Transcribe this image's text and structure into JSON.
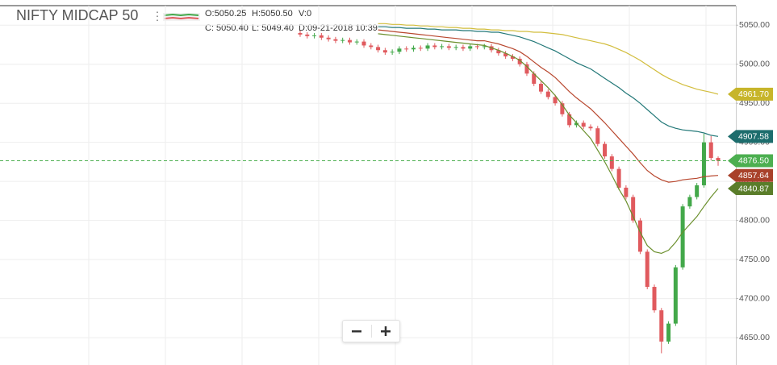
{
  "chart_data": {
    "type": "candlestick",
    "title": "NIFTY MIDCAP 50",
    "ohlc_texts": [
      "O:5050.25",
      "H:5050.50",
      "V:0",
      "C: 5050.40",
      "L: 5049.40",
      "D:09-21-2018 10:39"
    ],
    "up_color": "#43a84a",
    "down_color": "#e05a5e",
    "ylim": [
      4615,
      5075
    ],
    "yticks": [
      {
        "value": 5050,
        "label": "5050.00"
      },
      {
        "value": 5000,
        "label": "5000.00"
      },
      {
        "value": 4950,
        "label": "4950.00"
      },
      {
        "value": 4900,
        "label": "4900.00"
      },
      {
        "value": 4850,
        "label": "4850.00"
      },
      {
        "value": 4800,
        "label": "4800.00"
      },
      {
        "value": 4750,
        "label": "4750.00"
      },
      {
        "value": 4700,
        "label": "4700.00"
      },
      {
        "value": 4650,
        "label": "4650.00"
      }
    ],
    "grid": true,
    "open": [
      5040,
      5038,
      5036,
      5037,
      5034,
      5032,
      5030,
      5031,
      5028,
      5029,
      5024,
      5022,
      5018,
      5015,
      5016,
      5020,
      5019,
      5021,
      5020,
      5024,
      5022,
      5023,
      5021,
      5022,
      5020,
      5023,
      5022,
      5023,
      5018,
      5014,
      5010,
      5007,
      5000,
      4988,
      4975,
      4965,
      4958,
      4950,
      4936,
      4922,
      4925,
      4920,
      4918,
      4898,
      4882,
      4866,
      4842,
      4830,
      4800,
      4760,
      4715,
      4685,
      4645,
      4668,
      4740,
      4818,
      4830,
      4845,
      4900,
      4880
    ],
    "high": [
      5043,
      5041,
      5040,
      5040,
      5037,
      5035,
      5034,
      5034,
      5032,
      5032,
      5027,
      5025,
      5021,
      5019,
      5023,
      5023,
      5024,
      5024,
      5027,
      5027,
      5026,
      5026,
      5025,
      5025,
      5026,
      5026,
      5026,
      5026,
      5021,
      5017,
      5013,
      5010,
      5003,
      4991,
      4978,
      4968,
      4961,
      4953,
      4939,
      4928,
      4928,
      4923,
      4921,
      4901,
      4885,
      4869,
      4845,
      4833,
      4803,
      4763,
      4718,
      4688,
      4671,
      4743,
      4821,
      4833,
      4848,
      4911,
      4908,
      4882
    ],
    "low": [
      5035,
      5033,
      5033,
      5031,
      5029,
      5027,
      5027,
      5025,
      5025,
      5021,
      5019,
      5015,
      5012,
      5012,
      5013,
      5016,
      5016,
      5017,
      5017,
      5019,
      5019,
      5018,
      5018,
      5017,
      5017,
      5019,
      5019,
      5015,
      5011,
      5007,
      5004,
      4997,
      4985,
      4972,
      4962,
      4955,
      4947,
      4933,
      4919,
      4919,
      4917,
      4915,
      4895,
      4879,
      4863,
      4839,
      4827,
      4797,
      4757,
      4712,
      4682,
      4630,
      4642,
      4665,
      4737,
      4815,
      4827,
      4842,
      4877,
      4870
    ],
    "close": [
      5038,
      5036,
      5037,
      5034,
      5032,
      5030,
      5031,
      5028,
      5029,
      5024,
      5022,
      5018,
      5015,
      5016,
      5020,
      5019,
      5021,
      5020,
      5024,
      5022,
      5023,
      5021,
      5022,
      5020,
      5023,
      5022,
      5023,
      5018,
      5014,
      5010,
      5007,
      5000,
      4988,
      4975,
      4965,
      4958,
      4950,
      4936,
      4922,
      4925,
      4920,
      4918,
      4898,
      4882,
      4866,
      4842,
      4830,
      4800,
      4760,
      4715,
      4685,
      4645,
      4668,
      4740,
      4818,
      4830,
      4845,
      4900,
      4880,
      4876.5
    ],
    "series": [
      {
        "color": "#d2bd3c",
        "values": [
          null,
          null,
          null,
          null,
          null,
          null,
          null,
          null,
          null,
          null,
          null,
          5052,
          5052,
          5051,
          5051,
          5050,
          5050,
          5049,
          5049,
          5048,
          5048,
          5047,
          5047,
          5046,
          5046,
          5045,
          5045,
          5044,
          5044,
          5043,
          5043,
          5042,
          5042,
          5041,
          5041,
          5040,
          5039,
          5038,
          5036,
          5034,
          5032,
          5030,
          5028,
          5026,
          5023,
          5019,
          5015,
          5010,
          5005,
          4999,
          4993,
          4987,
          4982,
          4978,
          4974,
          4971,
          4968,
          4966,
          4964,
          4961.7
        ]
      },
      {
        "color": "#237878",
        "values": [
          null,
          null,
          null,
          null,
          null,
          null,
          null,
          null,
          null,
          null,
          null,
          5048,
          5048,
          5047,
          5047,
          5046,
          5046,
          5046,
          5045,
          5045,
          5044,
          5044,
          5044,
          5043,
          5043,
          5042,
          5042,
          5041,
          5041,
          5039,
          5037,
          5035,
          5032,
          5029,
          5025,
          5021,
          5017,
          5012,
          5007,
          5002,
          4998,
          4994,
          4988,
          4982,
          4976,
          4970,
          4963,
          4957,
          4950,
          4942,
          4934,
          4926,
          4921,
          4918,
          4916,
          4915,
          4914,
          4912,
          4909,
          4907.58
        ]
      },
      {
        "color": "#b8472e",
        "values": [
          null,
          null,
          null,
          null,
          null,
          null,
          null,
          null,
          null,
          null,
          null,
          5044,
          5043,
          5042,
          5041,
          5040,
          5039,
          5038,
          5037,
          5036,
          5035,
          5034,
          5033,
          5032,
          5031,
          5030,
          5030,
          5028,
          5026,
          5023,
          5020,
          5016,
          5010,
          5003,
          4996,
          4990,
          4983,
          4974,
          4965,
          4957,
          4950,
          4943,
          4934,
          4925,
          4915,
          4905,
          4895,
          4885,
          4874,
          4864,
          4857,
          4852,
          4849,
          4850,
          4852,
          4853,
          4854,
          4856,
          4857,
          4857.64
        ]
      },
      {
        "color": "#6a8f2c",
        "values": [
          null,
          null,
          null,
          null,
          null,
          null,
          null,
          null,
          null,
          null,
          null,
          5039,
          5038,
          5037,
          5036,
          5035,
          5034,
          5033,
          5032,
          5031,
          5030,
          5029,
          5028,
          5027,
          5026,
          5025,
          5024,
          5021,
          5018,
          5014,
          5010,
          5005,
          4997,
          4988,
          4979,
          4970,
          4960,
          4948,
          4935,
          4925,
          4915,
          4905,
          4890,
          4875,
          4858,
          4840,
          4825,
          4805,
          4785,
          4768,
          4760,
          4758,
          4762,
          4772,
          4785,
          4795,
          4805,
          4818,
          4830,
          4840.87
        ]
      }
    ],
    "price_tags": [
      {
        "value": 4961.7,
        "label": "4961.70",
        "color": "#c7b52a"
      },
      {
        "value": 4907.58,
        "label": "4907.58",
        "color": "#1d6d6d"
      },
      {
        "value": 4876.5,
        "label": "4876.50",
        "color": "#4caf50",
        "dashed": true
      },
      {
        "value": 4857.64,
        "label": "4857.64",
        "color": "#a8412a"
      },
      {
        "value": 4840.87,
        "label": "4840.87",
        "color": "#5a7d2a"
      }
    ]
  }
}
